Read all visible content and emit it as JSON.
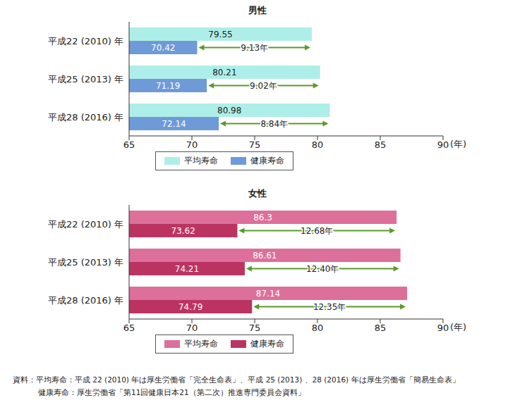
{
  "chart_data": [
    {
      "type": "bar",
      "title": "男性",
      "orientation": "horizontal",
      "categories": [
        "平成22 (2010) 年",
        "平成25 (2013) 年",
        "平成28 (2016) 年"
      ],
      "series": [
        {
          "name": "平均寿命",
          "color": "#aeeee8",
          "values": [
            79.55,
            80.21,
            80.98
          ]
        },
        {
          "name": "健康寿命",
          "color": "#6f9ad8",
          "values": [
            70.42,
            71.19,
            72.14
          ]
        }
      ],
      "gaps": [
        9.13,
        9.02,
        8.84
      ],
      "gap_labels": [
        "9.13年",
        "9.02年",
        "8.84年"
      ],
      "xlabel": "(年)",
      "xlim": [
        65,
        90
      ],
      "xticks": [
        65,
        70,
        75,
        80,
        85,
        90
      ],
      "grid": false,
      "legend": "bottom",
      "data_labels": true
    },
    {
      "type": "bar",
      "title": "女性",
      "orientation": "horizontal",
      "categories": [
        "平成22 (2010) 年",
        "平成25 (2013) 年",
        "平成28 (2016) 年"
      ],
      "series": [
        {
          "name": "平均寿命",
          "color": "#dd6f9b",
          "values": [
            86.3,
            86.61,
            87.14
          ]
        },
        {
          "name": "健康寿命",
          "color": "#bb3461",
          "values": [
            73.62,
            74.21,
            74.79
          ]
        }
      ],
      "gaps": [
        12.68,
        12.4,
        12.35
      ],
      "gap_labels": [
        "12.68年",
        "12.40年",
        "12.35年"
      ],
      "xlabel": "(年)",
      "xlim": [
        65,
        90
      ],
      "xticks": [
        65,
        70,
        75,
        80,
        85,
        90
      ],
      "grid": false,
      "legend": "bottom",
      "data_labels": true
    }
  ],
  "source": [
    "資料：平均寿命：平成 22 (2010) 年は厚生労働省「完全生命表」、平成 25 (2013) 、28 (2016) 年は厚生労働省「簡易生命表」",
    "健康寿命：厚生労働省「第11回健康日本21（第二次）推進専門委員会資料」"
  ]
}
